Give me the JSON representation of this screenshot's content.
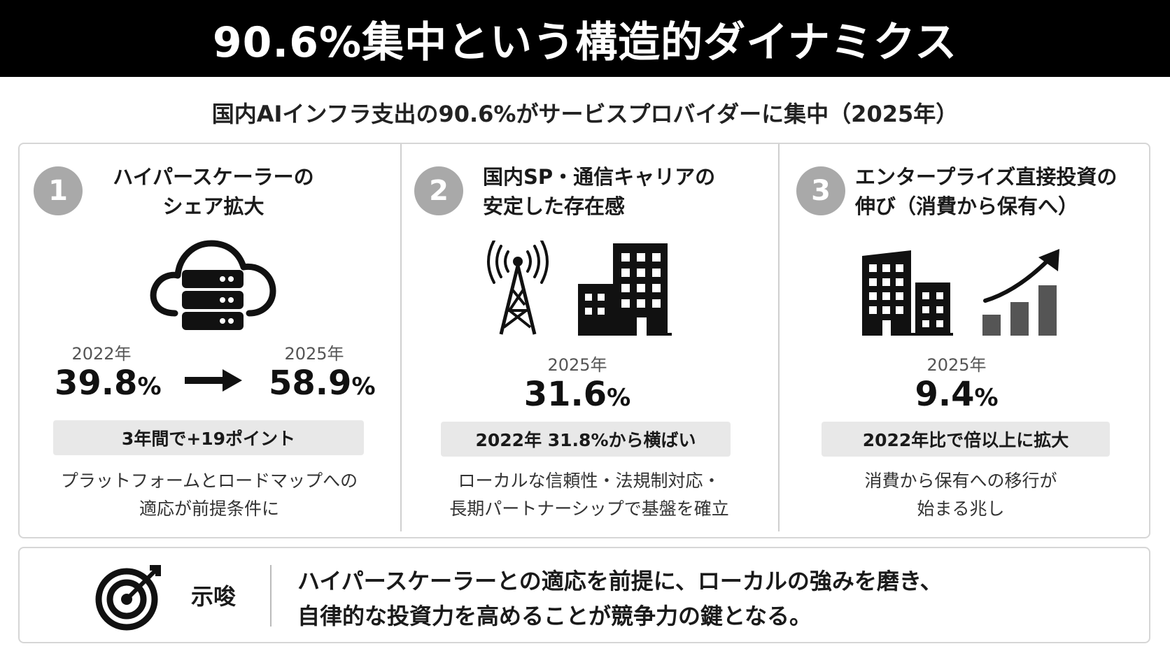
{
  "title": "90.6%集中という構造的ダイナミクス",
  "subtitle": "国内AIインフラ支出の90.6%がサービスプロバイダーに集中（2025年）",
  "panels": [
    {
      "number": "1",
      "heading_line1": "ハイパースケーラーの",
      "heading_line2": "シェア拡大",
      "icon": "cloud-server-icon",
      "from_year": "2022年",
      "from_value": "39.8",
      "to_year": "2025年",
      "to_value": "58.9",
      "pct": "%",
      "pill": "3年間で+19ポイント",
      "desc_line1": "プラットフォームとロードマップへの",
      "desc_line2": "適応が前提条件に"
    },
    {
      "number": "2",
      "heading_line1": "国内SP・通信キャリアの",
      "heading_line2": "安定した存在感",
      "icon": "tower-building-icon",
      "year": "2025年",
      "value": "31.6",
      "pct": "%",
      "pill": "2022年 31.8%から横ばい",
      "desc_line1": "ローカルな信頼性・法規制対応・",
      "desc_line2": "長期パートナーシップで基盤を確立"
    },
    {
      "number": "3",
      "heading_line1": "エンタープライズ直接投資の",
      "heading_line2": "伸び（消費から保有へ）",
      "icon": "building-growth-icon",
      "year": "2025年",
      "value": "9.4",
      "pct": "%",
      "pill": "2022年比で倍以上に拡大",
      "desc_line1": "消費から保有への移行が",
      "desc_line2": "始まる兆し"
    }
  ],
  "implication": {
    "icon": "target-icon",
    "label": "示唆",
    "line1": "ハイパースケーラーとの適応を前提に、ローカルの強みを磨き、",
    "line2": "自律的な投資力を高めることが競争力の鍵となる。"
  },
  "colors": {
    "title_bg": "#000000",
    "circle": "#a9a9a9",
    "pill_bg": "#e8e8e8"
  }
}
